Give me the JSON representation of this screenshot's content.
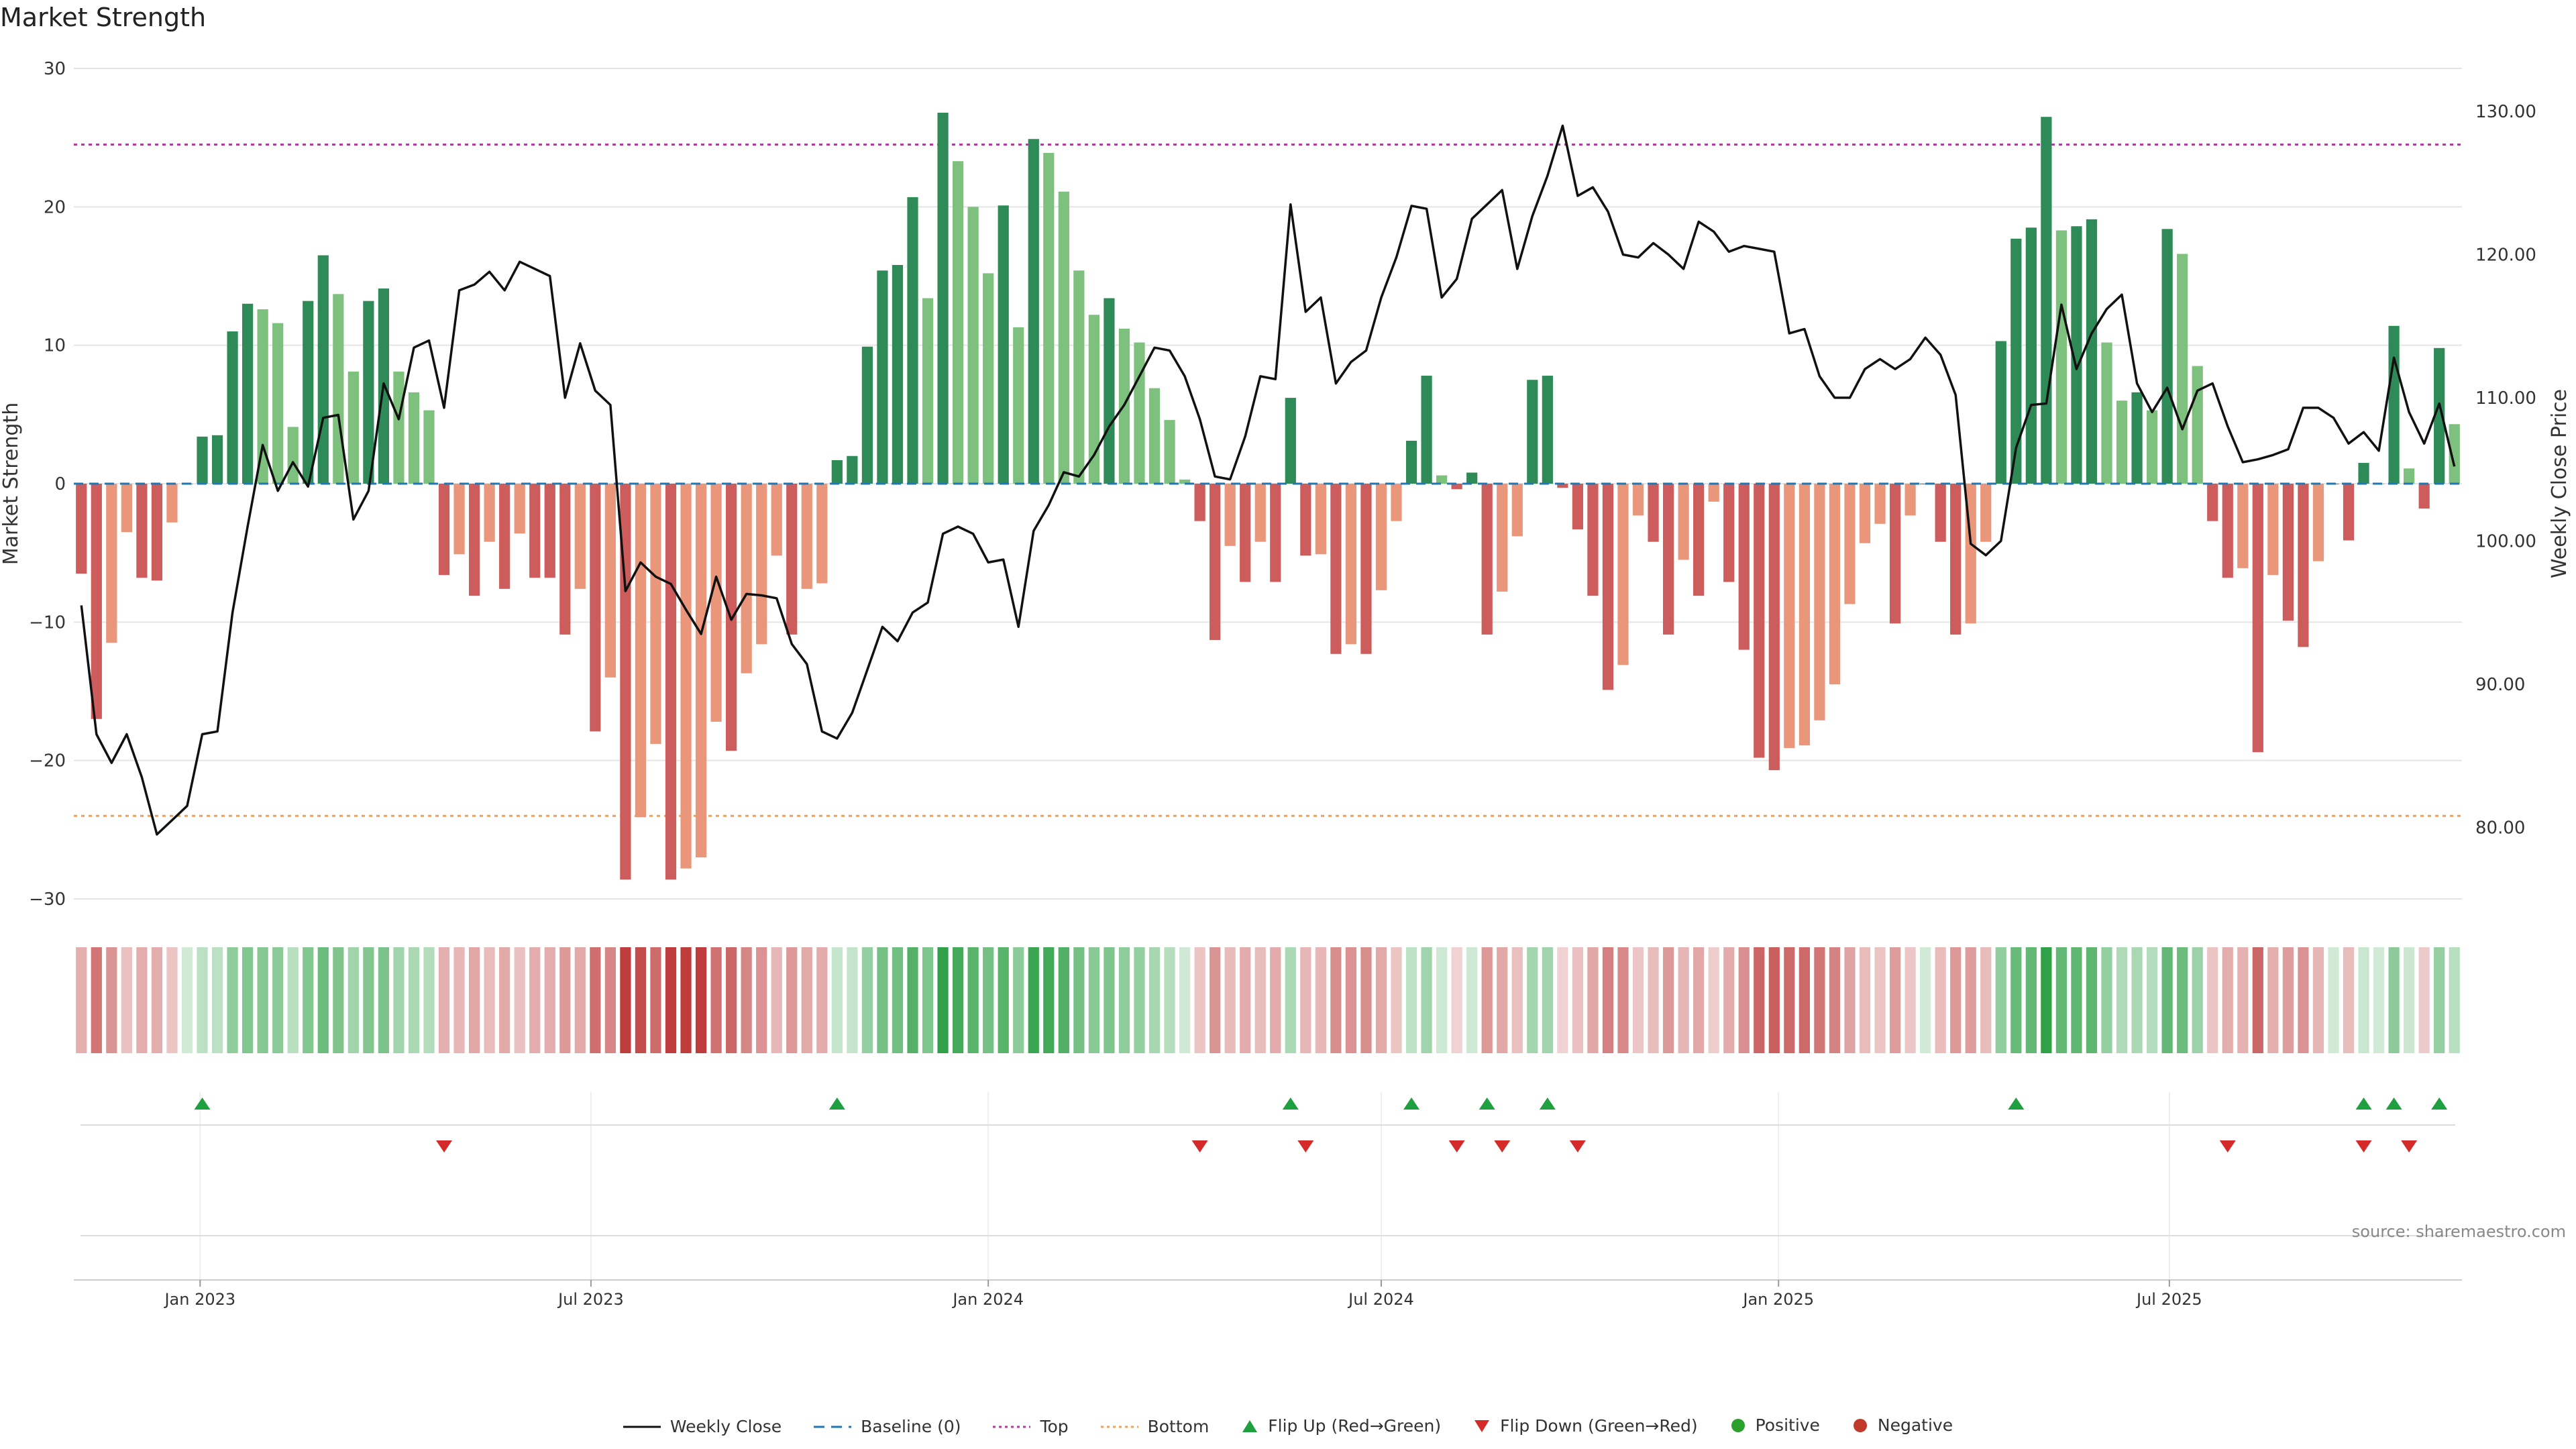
{
  "page": {
    "title": "Market Strength",
    "source": "source: sharemaestro.com"
  },
  "colors": {
    "pos_dark": "#2e8b57",
    "pos_light": "#7ec07e",
    "neg_dark": "#cd5c5c",
    "neg_light": "#e9967a",
    "line": "#111111",
    "baseline": "#1f77b4",
    "top": "#b03aa0",
    "bottom": "#f0a050",
    "flip_up": "#1fa040",
    "flip_down": "#d42a2a",
    "positive": "#2ca02c",
    "negative": "#c0392b",
    "grid": "#e5e5e5"
  },
  "legend": {
    "weekly_close": "Weekly Close",
    "baseline": "Baseline (0)",
    "top": "Top",
    "bottom": "Bottom",
    "flip_up": "Flip Up (Red→Green)",
    "flip_down": "Flip Down (Green→Red)",
    "positive": "Positive",
    "negative": "Negative"
  },
  "chart_data": {
    "type": "bar",
    "title": "Market Strength",
    "ylabel": "Market Strength",
    "y2label": "Weekly Close Price",
    "ylim": [
      -30,
      30
    ],
    "y2lim": [
      75,
      133
    ],
    "yticks": [
      -30,
      -20,
      -10,
      0,
      10,
      20,
      30
    ],
    "y2ticks": [
      "80.00",
      "90.00",
      "100.00",
      "110.00",
      "120.00",
      "130.00"
    ],
    "x_start": "2022-11-07",
    "x_step_days": 7,
    "xtick_labels": [
      {
        "date": "2023-01-01",
        "label": "Jan 2023"
      },
      {
        "date": "2023-07-01",
        "label": "Jul 2023"
      },
      {
        "date": "2024-01-01",
        "label": "Jan 2024"
      },
      {
        "date": "2024-07-01",
        "label": "Jul 2024"
      },
      {
        "date": "2025-01-01",
        "label": "Jan 2025"
      },
      {
        "date": "2025-07-01",
        "label": "Jul 2025"
      }
    ],
    "top_threshold": 24.5,
    "bottom_threshold": -24,
    "baseline": 0,
    "grid": true,
    "legend_position": "bottom",
    "strength": [
      -6.5,
      -17,
      -11.5,
      -3.5,
      -6.8,
      -7,
      -2.8,
      0,
      3.4,
      3.5,
      11,
      13,
      12.6,
      11.6,
      4.1,
      13.2,
      16.5,
      13.7,
      8.1,
      13.2,
      14.1,
      8.1,
      6.6,
      5.3,
      -6.6,
      -5.1,
      -8.1,
      -4.2,
      -7.6,
      -3.6,
      -6.8,
      -6.8,
      -10.9,
      -7.6,
      -17.9,
      -14,
      -28.6,
      -24.1,
      -18.8,
      -28.6,
      -27.8,
      -27,
      -17.2,
      -19.3,
      -13.7,
      -11.6,
      -5.2,
      -10.9,
      -7.6,
      -7.2,
      1.7,
      2,
      9.9,
      15.4,
      15.8,
      20.7,
      13.4,
      26.8,
      23.3,
      20,
      15.2,
      20.1,
      11.3,
      24.9,
      23.9,
      21.1,
      15.4,
      12.2,
      13.4,
      11.2,
      10.2,
      6.9,
      4.6,
      0.3,
      -2.7,
      -11.3,
      -4.5,
      -7.1,
      -4.2,
      -7.1,
      6.2,
      -5.2,
      -5.1,
      -12.3,
      -11.6,
      -12.3,
      -7.7,
      -2.7,
      3.1,
      7.8,
      0.6,
      -0.4,
      0.8,
      -10.9,
      -7.8,
      -3.8,
      7.5,
      7.8,
      -0.3,
      -3.3,
      -8.1,
      -14.9,
      -13.1,
      -2.3,
      -4.2,
      -10.9,
      -5.5,
      -8.1,
      -1.3,
      -7.1,
      -12,
      -19.8,
      -20.7,
      -19.1,
      -18.9,
      -17.1,
      -14.5,
      -8.7,
      -4.3,
      -2.9,
      -10.1,
      -2.3,
      0,
      -4.2,
      -10.9,
      -10.1,
      -4.2,
      10.3,
      17.7,
      18.5,
      26.5,
      18.3,
      18.6,
      19.1,
      10.2,
      6,
      6.6,
      5.3,
      18.4,
      16.6,
      8.5,
      -2.7,
      -6.8,
      -6.1,
      -19.4,
      -6.6,
      -9.9,
      -11.8,
      -5.6,
      0,
      -4.1,
      1.5,
      0,
      11.4,
      1.1,
      -1.8,
      9.8,
      4.3
    ],
    "weekly_close": [
      95.5,
      86.5,
      84.5,
      86.5,
      83.5,
      79.5,
      80.5,
      81.5,
      86.5,
      86.7,
      95,
      101,
      106.7,
      103.5,
      105.5,
      103.8,
      108.6,
      108.8,
      101.5,
      103.5,
      111,
      108.5,
      113.5,
      114,
      109.3,
      117.5,
      117.9,
      118.8,
      117.5,
      119.5,
      119,
      118.5,
      110,
      113.8,
      110.5,
      109.5,
      96.5,
      98.5,
      97.5,
      97,
      95.2,
      93.5,
      97.5,
      94.5,
      96.3,
      96.2,
      96,
      92.8,
      91.4,
      86.7,
      86.2,
      88,
      91,
      94,
      93,
      95,
      95.7,
      100.5,
      101,
      100.5,
      98.5,
      98.7,
      94,
      100.7,
      102.5,
      104.8,
      104.5,
      106,
      108,
      109.5,
      111.5,
      113.5,
      113.3,
      111.5,
      108.5,
      104.5,
      104.3,
      107.3,
      111.5,
      111.3,
      123.5,
      116,
      117,
      111,
      112.5,
      113.3,
      117,
      119.8,
      123.4,
      123.2,
      117,
      118.3,
      122.5,
      123.5,
      124.5,
      119,
      122.7,
      125.5,
      129,
      124.1,
      124.7,
      123,
      120,
      119.8,
      120.8,
      120,
      119,
      122.3,
      121.6,
      120.2,
      120.6,
      120.4,
      120.2,
      114.5,
      114.8,
      111.5,
      110,
      110,
      112,
      112.7,
      112,
      112.7,
      114.2,
      113,
      110.2,
      99.8,
      99,
      100,
      106.5,
      109.5,
      109.6,
      116.5,
      112,
      114.5,
      116.2,
      117.2,
      111,
      109,
      110.7,
      107.8,
      110.5,
      111,
      108,
      105.5,
      105.7,
      106,
      106.4,
      109.3,
      109.3,
      108.6,
      106.8,
      107.6,
      106.3,
      112.8,
      109,
      106.8,
      109.6,
      105.2
    ],
    "flip_up_weeks": [
      8,
      50,
      80,
      88,
      93,
      97,
      128,
      151,
      153,
      156
    ],
    "flip_down_weeks": [
      24,
      74,
      81,
      91,
      94,
      99,
      142,
      151,
      154
    ]
  }
}
